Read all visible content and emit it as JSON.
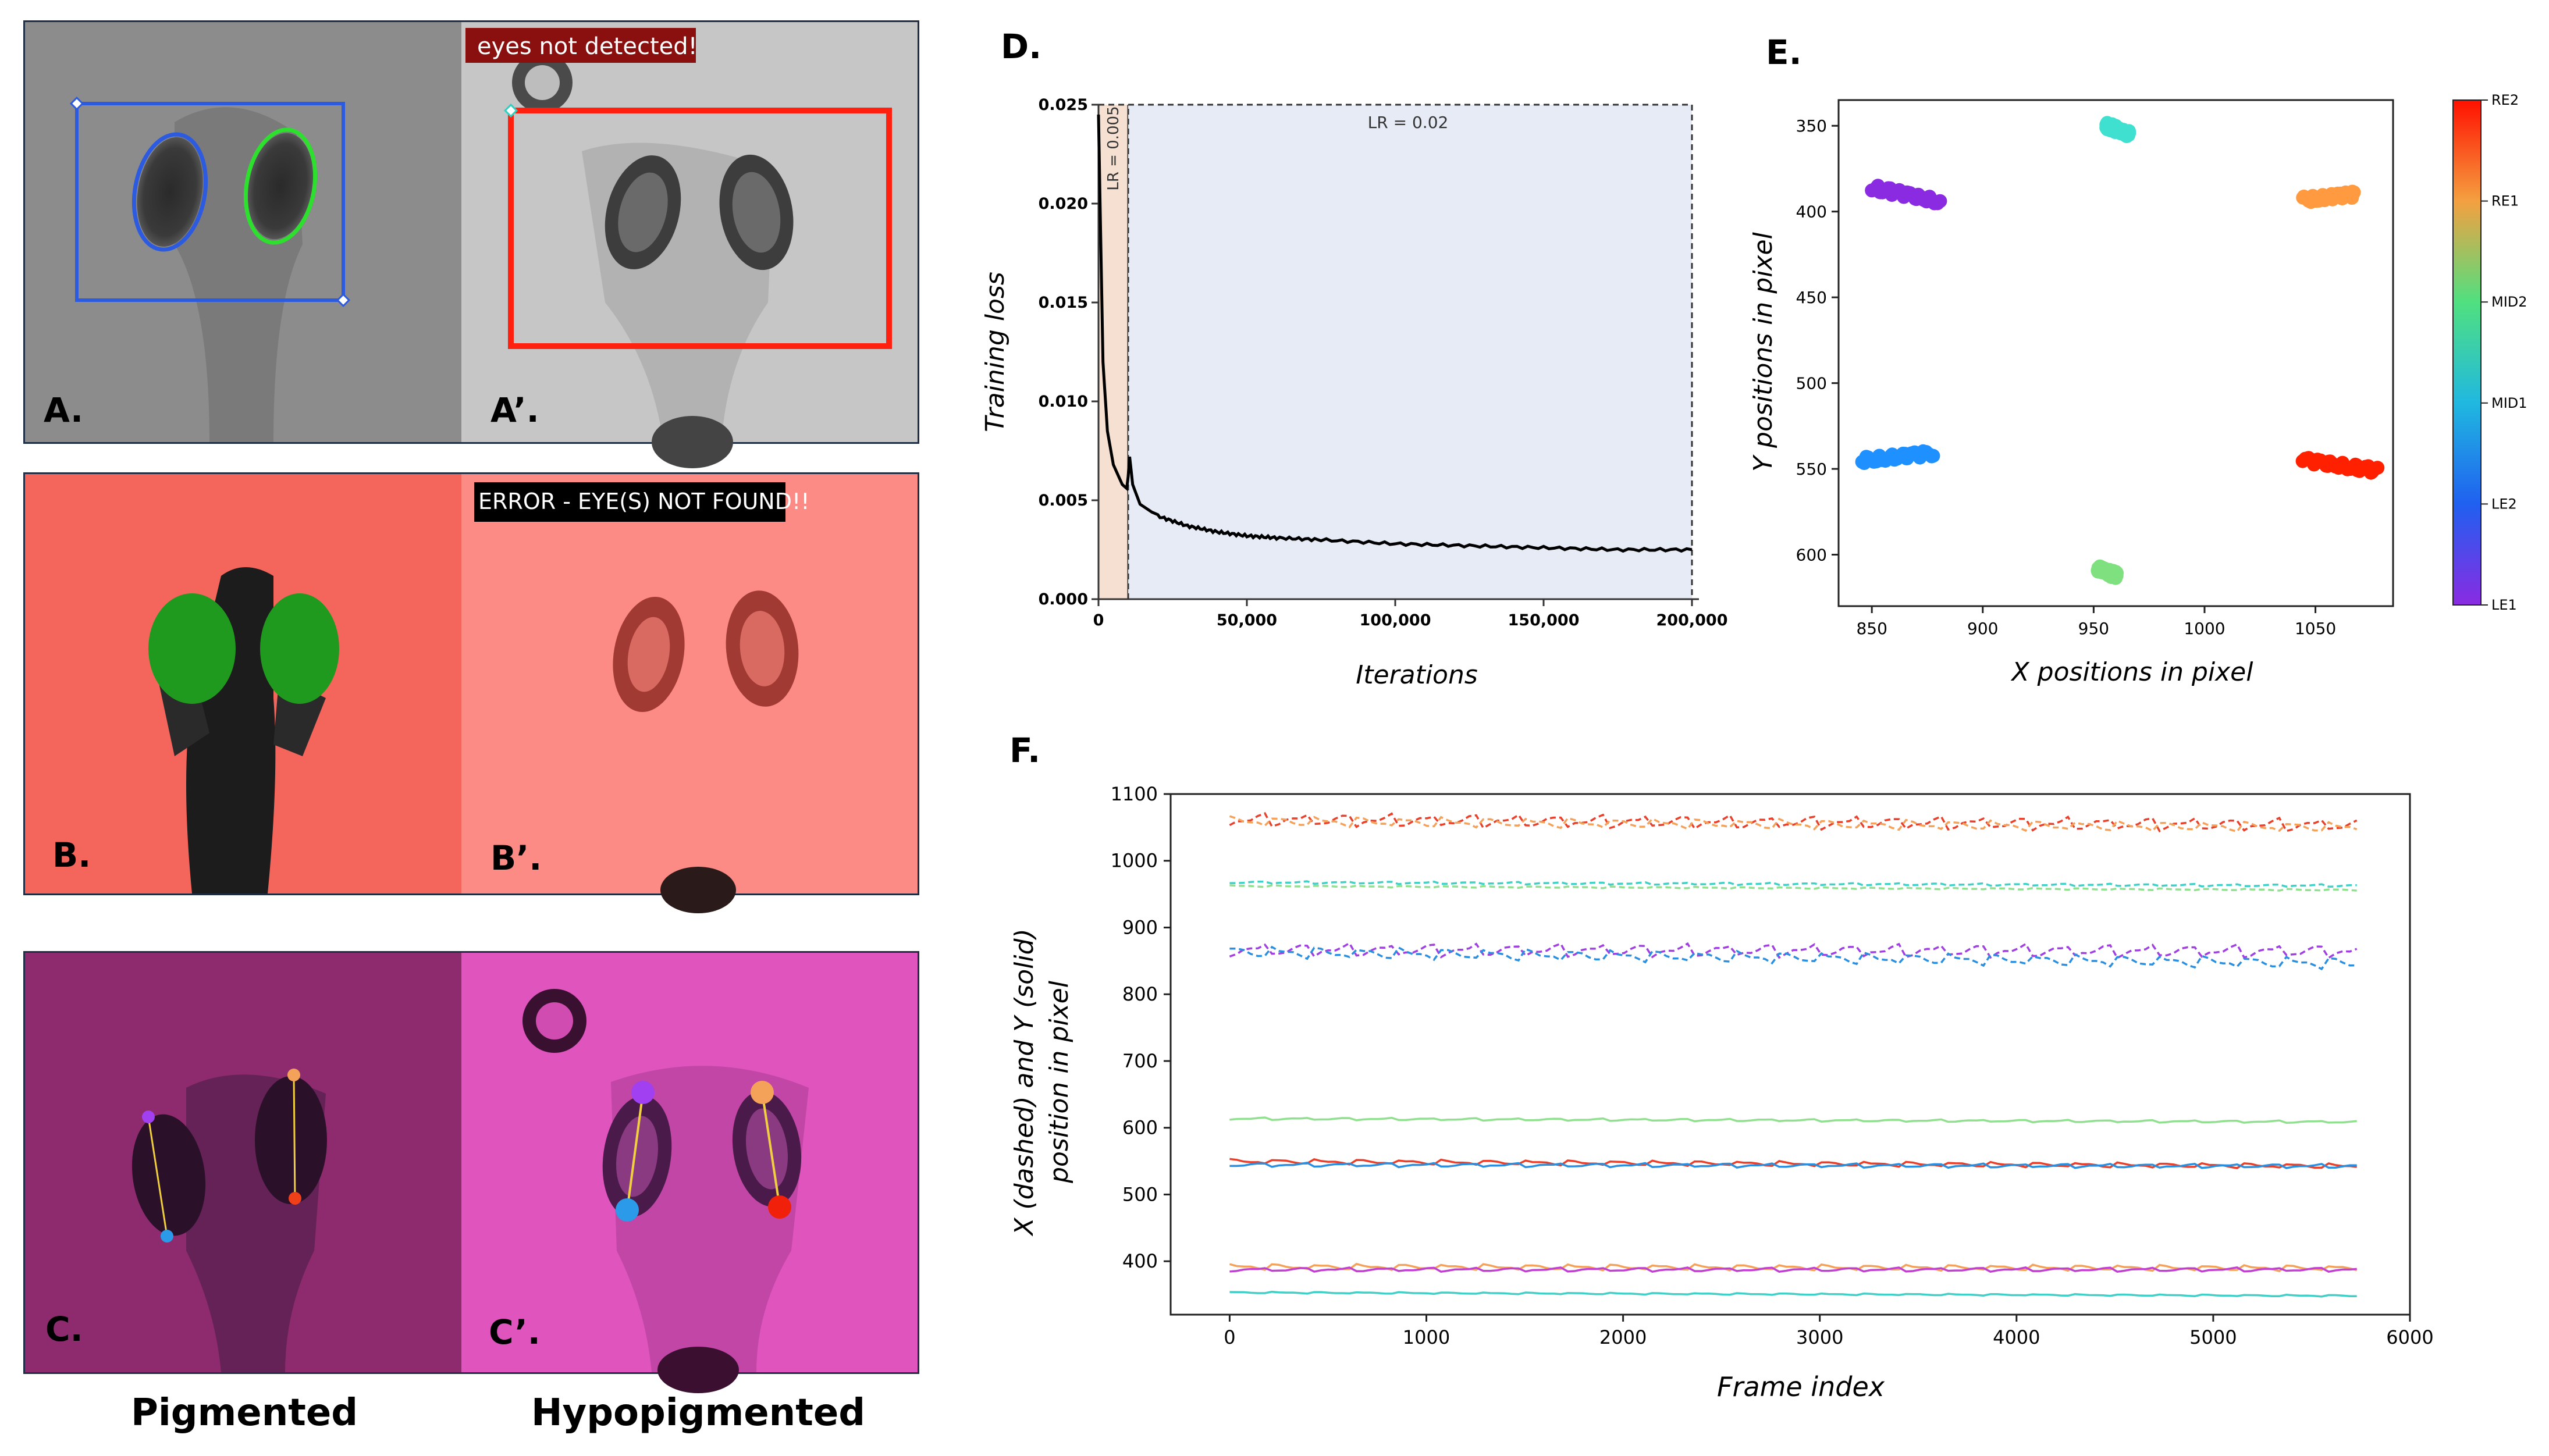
{
  "panels": {
    "A": {
      "label": "A."
    },
    "A_prime": {
      "label": "A’.",
      "message": "eyes not detected!"
    },
    "B": {
      "label": "B."
    },
    "B_prime": {
      "label": "B’.",
      "message": "ERROR - EYE(S) NOT FOUND!!"
    },
    "C": {
      "label": "C."
    },
    "C_prime": {
      "label": "C’."
    },
    "D": {
      "label": "D."
    },
    "E": {
      "label": "E."
    },
    "F": {
      "label": "F."
    },
    "captions": {
      "pigmented": "Pigmented",
      "hypopigmented": "Hypopigmented"
    }
  },
  "chart_data": [
    {
      "id": "D",
      "type": "line",
      "xlabel": "Iterations",
      "ylabel": "Training loss",
      "xlim": [
        0,
        200000
      ],
      "ylim": [
        0,
        0.025
      ],
      "xticks": [
        "0",
        "50,000",
        "100,000",
        "150,000",
        "200,000"
      ],
      "yticks": [
        "0.000",
        "0.005",
        "0.010",
        "0.015",
        "0.020",
        "0.025"
      ],
      "regions": [
        {
          "label": "LR = 0.005",
          "start": 0,
          "end": 10000
        },
        {
          "label": "LR = 0.02",
          "start": 10000,
          "end": 200000
        }
      ],
      "series": [
        {
          "name": "loss",
          "x": [
            0,
            1500,
            3000,
            5000,
            8000,
            9500,
            10000,
            10500,
            11500,
            14000,
            20000,
            30000,
            40000,
            50000,
            60000,
            75000,
            100000,
            125000,
            150000,
            175000,
            200000
          ],
          "y": [
            0.0245,
            0.012,
            0.0085,
            0.0068,
            0.0058,
            0.0056,
            0.0062,
            0.0072,
            0.0058,
            0.0048,
            0.0042,
            0.0037,
            0.0034,
            0.0032,
            0.0031,
            0.003,
            0.0028,
            0.0027,
            0.0026,
            0.0025,
            0.0025
          ]
        }
      ]
    },
    {
      "id": "E",
      "type": "scatter",
      "xlabel": "X positions in pixel",
      "ylabel": "Y positions in pixel",
      "xlim": [
        835,
        1085
      ],
      "ylim": [
        630,
        335
      ],
      "xticks": [
        "850",
        "900",
        "950",
        "1000",
        "1050"
      ],
      "yticks": [
        "350",
        "400",
        "450",
        "500",
        "550",
        "600"
      ],
      "colorbar": [
        "RE2",
        "RE1",
        "MID2",
        "MID1",
        "LE2",
        "LE1"
      ],
      "clusters": [
        {
          "name": "LE1",
          "color": "#8a2be2",
          "x": [
            850,
            880
          ],
          "y": [
            386,
            394
          ]
        },
        {
          "name": "LE2",
          "color": "#1e90ff",
          "x": [
            845,
            877
          ],
          "y": [
            545,
            541
          ]
        },
        {
          "name": "MID1",
          "color": "#7fe07f",
          "x": [
            952,
            960
          ],
          "y": [
            608,
            612
          ]
        },
        {
          "name": "MID2",
          "color": "#40e0d0",
          "x": [
            956,
            966
          ],
          "y": [
            350,
            355
          ]
        },
        {
          "name": "RE1",
          "color": "#ff9a40",
          "x": [
            1045,
            1068
          ],
          "y": [
            393,
            390
          ]
        },
        {
          "name": "RE2",
          "color": "#ff2000",
          "x": [
            1045,
            1078
          ],
          "y": [
            545,
            551
          ]
        }
      ]
    },
    {
      "id": "F",
      "type": "line",
      "xlabel": "Frame index",
      "ylabel": [
        "X (dashed) and Y (solid)",
        "position in pixel"
      ],
      "xlim": [
        -300,
        6000
      ],
      "ylim": [
        320,
        1100
      ],
      "xticks": [
        "0",
        "1000",
        "2000",
        "3000",
        "4000",
        "5000",
        "6000"
      ],
      "yticks": [
        "400",
        "500",
        "600",
        "700",
        "800",
        "900",
        "1000",
        "1100"
      ],
      "series": [
        {
          "name": "RE2 X",
          "color": "#e8402a",
          "dash": true,
          "start": 1063,
          "end": 1055,
          "amp": 16
        },
        {
          "name": "RE1 X",
          "color": "#f4a25a",
          "dash": true,
          "start": 1058,
          "end": 1049,
          "amp": 12
        },
        {
          "name": "MID2 X",
          "color": "#40d0c8",
          "dash": true,
          "start": 968,
          "end": 963,
          "amp": 3
        },
        {
          "name": "MID1 X",
          "color": "#90e090",
          "dash": true,
          "start": 962,
          "end": 956,
          "amp": 2
        },
        {
          "name": "LE1 X",
          "color": "#a040e0",
          "dash": true,
          "start": 868,
          "end": 866,
          "amp": 16
        },
        {
          "name": "LE2 X",
          "color": "#2b8fe0",
          "dash": true,
          "start": 862,
          "end": 845,
          "amp": 14
        },
        {
          "name": "MID1 Y",
          "color": "#90e090",
          "dash": false,
          "start": 614,
          "end": 609,
          "amp": 3
        },
        {
          "name": "RE2 Y",
          "color": "#e8402a",
          "dash": false,
          "start": 549,
          "end": 542,
          "amp": 6
        },
        {
          "name": "LE2 Y",
          "color": "#2b8fe0",
          "dash": false,
          "start": 545,
          "end": 543,
          "amp": 5
        },
        {
          "name": "RE1 Y",
          "color": "#f4a25a",
          "dash": false,
          "start": 391,
          "end": 389,
          "amp": 7
        },
        {
          "name": "LE1 Y",
          "color": "#c040d0",
          "dash": false,
          "start": 388,
          "end": 388,
          "amp": 5
        },
        {
          "name": "MID2 Y",
          "color": "#40d0c8",
          "dash": false,
          "start": 353,
          "end": 348,
          "amp": 2
        }
      ]
    }
  ]
}
